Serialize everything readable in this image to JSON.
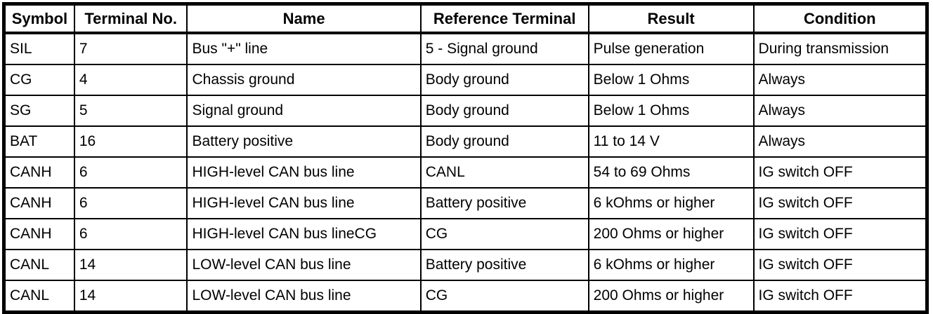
{
  "colors": {
    "background": "#ffffff",
    "border": "#000000",
    "text": "#000000"
  },
  "table": {
    "columns": [
      "Symbol",
      "Terminal No.",
      "Name",
      "Reference Terminal",
      "Result",
      "Condition"
    ],
    "rows": [
      [
        "SIL",
        "7",
        "Bus \"+\" line",
        "5 - Signal ground",
        "Pulse generation",
        "During transmission"
      ],
      [
        "CG",
        "4",
        "Chassis ground",
        "Body ground",
        "Below 1 Ohms",
        "Always"
      ],
      [
        "SG",
        "5",
        "Signal ground",
        "Body ground",
        "Below 1 Ohms",
        "Always"
      ],
      [
        "BAT",
        "16",
        "Battery positive",
        "Body ground",
        "11 to 14 V",
        "Always"
      ],
      [
        "CANH",
        "6",
        "HIGH-level CAN bus line",
        "CANL",
        "54 to 69 Ohms",
        "IG switch OFF"
      ],
      [
        "CANH",
        "6",
        "HIGH-level CAN bus line",
        "Battery positive",
        "6 kOhms or higher",
        "IG switch OFF"
      ],
      [
        "CANH",
        "6",
        "HIGH-level CAN bus lineCG",
        "CG",
        "200 Ohms or higher",
        "IG switch OFF"
      ],
      [
        "CANL",
        "14",
        "LOW-level CAN bus line",
        "Battery positive",
        "6 kOhms or higher",
        "IG switch OFF"
      ],
      [
        "CANL",
        "14",
        "LOW-level CAN bus line",
        "CG",
        "200 Ohms or higher",
        "IG switch OFF"
      ]
    ]
  }
}
